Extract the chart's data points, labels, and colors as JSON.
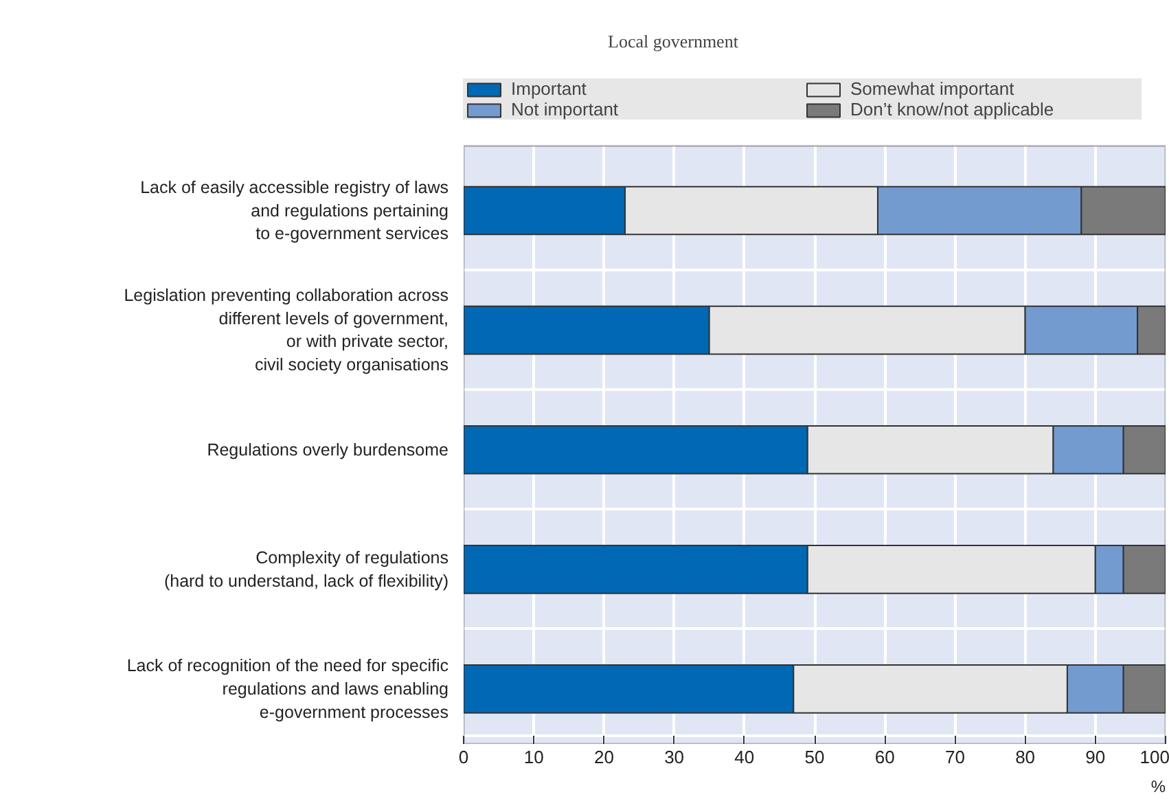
{
  "chart_data": {
    "type": "bar",
    "orientation": "horizontal",
    "stacked": true,
    "title": "Local government",
    "xlabel": "%",
    "categories": [
      "Lack of easily accessible registry of laws\nand regulations pertaining\nto e-government services",
      "Legislation preventing collaboration across\ndifferent levels of government,\nor with private sector,\ncivil society organisations",
      "Regulations overly burdensome",
      "Complexity of regulations\n(hard to understand, lack of flexibility)",
      "Lack of recognition of the need for specific\nregulations and laws enabling\ne-government processes"
    ],
    "series": [
      {
        "name": "Important",
        "color": "#0068b4",
        "values": [
          23,
          35,
          49,
          49,
          47
        ]
      },
      {
        "name": "Somewhat important",
        "color": "#e6e6e6",
        "values": [
          36,
          45,
          35,
          41,
          39
        ]
      },
      {
        "name": "Not important",
        "color": "#739bd0",
        "values": [
          29,
          16,
          10,
          4,
          8
        ]
      },
      {
        "name": "Don’t know/not applicable",
        "color": "#7a7a7a",
        "values": [
          12,
          4,
          6,
          6,
          6
        ]
      }
    ],
    "xlim": [
      0,
      100
    ],
    "xticks": [
      0,
      10,
      20,
      30,
      40,
      50,
      60,
      70,
      80,
      90,
      100
    ],
    "grid": true,
    "legend": "top"
  }
}
